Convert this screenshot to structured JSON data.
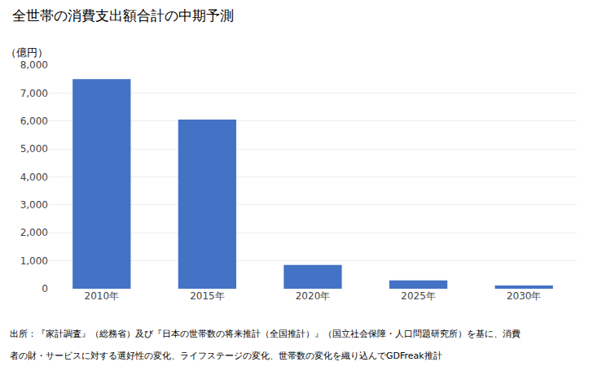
{
  "chart_data": {
    "type": "bar",
    "title": "全世帯の消費支出額合計の中期予測",
    "ylabel": "（億円）",
    "categories": [
      "2010年",
      "2015年",
      "2020年",
      "2025年",
      "2030年"
    ],
    "values": [
      7500,
      6050,
      850,
      300,
      120
    ],
    "color": "#4472C4",
    "ylim": [
      0,
      8000
    ],
    "yticks": [
      0,
      {
        "value": 1000,
        "label": "1,000"
      },
      {
        "value": 2000,
        "label": "2,000"
      },
      {
        "value": 3000,
        "label": "3,000"
      },
      {
        "value": 4000,
        "label": "4,000"
      },
      {
        "value": 5000,
        "label": "5,000"
      },
      {
        "value": 6000,
        "label": "6,000"
      },
      {
        "value": 7000,
        "label": "7,000"
      },
      {
        "value": 8000,
        "label": "8,000"
      }
    ],
    "grid": true,
    "annotations": [
      "出所：『家計調査』（総務省）及び『日本の世帯数の将来推計（全国推計）』（国立社会保障・人口問題研究所）を基に、消費",
      "者の財・サービスに対する選好性の変化、ライフステージの変化、世帯数の変化を織り込んでGDFreak推計"
    ]
  }
}
